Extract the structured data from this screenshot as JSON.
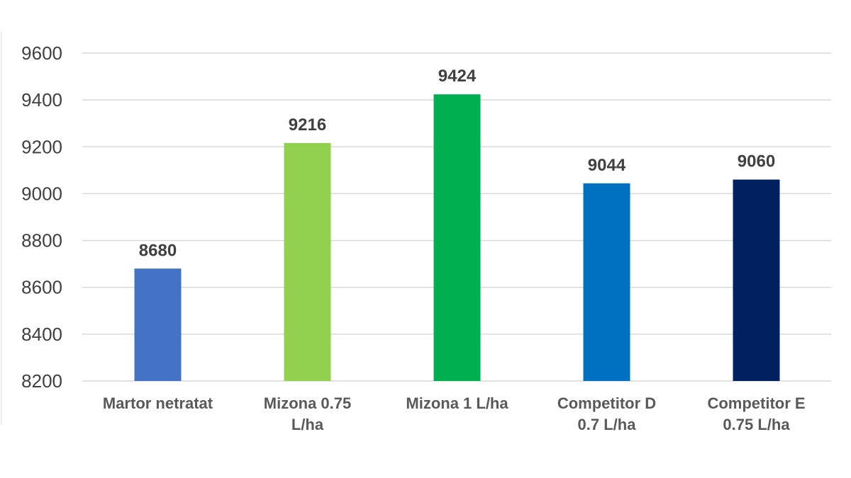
{
  "chart_data": {
    "type": "bar",
    "categories": [
      [
        "Martor netratat"
      ],
      [
        "Mizona 0.75",
        "L/ha"
      ],
      [
        "Mizona 1 L/ha"
      ],
      [
        "Competitor D",
        "0.7 L/ha"
      ],
      [
        "Competitor E",
        "0.75 L/ha"
      ]
    ],
    "values": [
      8680,
      9216,
      9424,
      9044,
      9060
    ],
    "data_labels": [
      "8680",
      "9216",
      "9424",
      "9044",
      "9060"
    ],
    "colors": [
      "#4472C4",
      "#92D050",
      "#00B050",
      "#0070C0",
      "#002060"
    ],
    "ylim": [
      8200,
      9600
    ],
    "yticks": [
      8200,
      8400,
      8600,
      8800,
      9000,
      9200,
      9400,
      9600
    ],
    "grid": true,
    "legend": "none",
    "title": "",
    "xlabel": "",
    "ylabel": ""
  }
}
